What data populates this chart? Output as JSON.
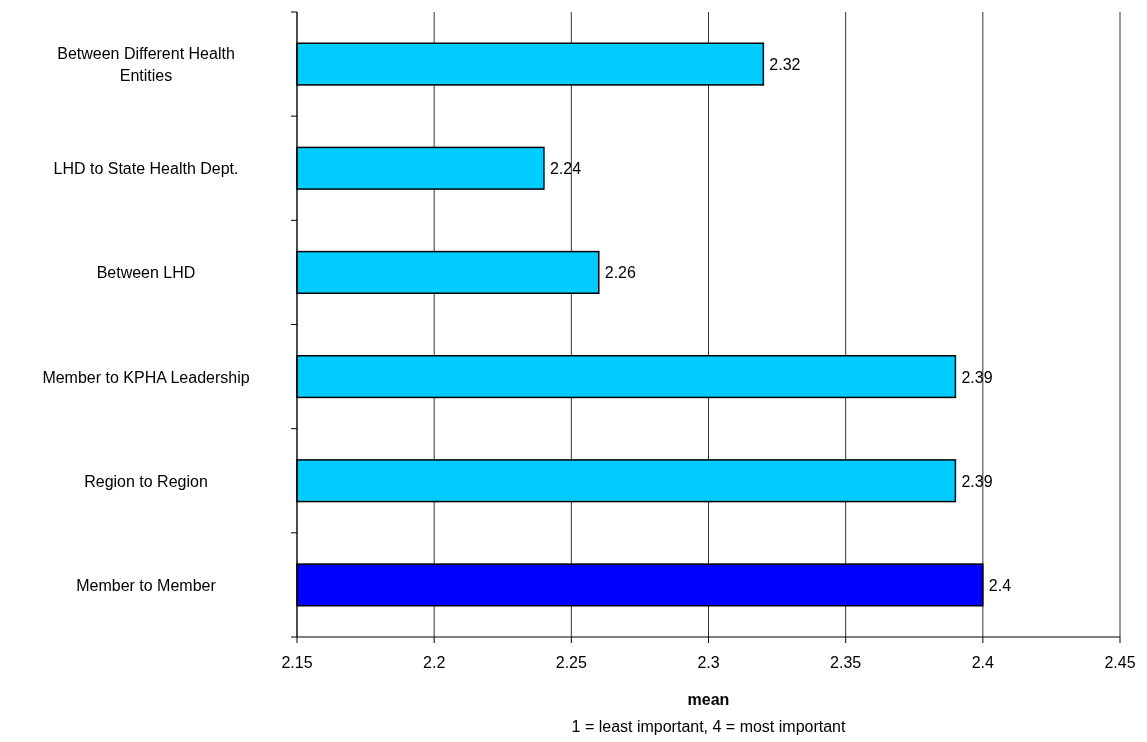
{
  "chart_data": {
    "type": "bar",
    "orientation": "horizontal",
    "xlabel": "mean",
    "annotations": [
      "1 = least important, 4 = most important"
    ],
    "categories": [
      "Between Different Health Entities",
      "LHD to State Health Dept.",
      "Between LHD",
      "Member to KPHA Leadership",
      "Region to Region",
      "Member to Member"
    ],
    "values": [
      2.32,
      2.24,
      2.26,
      2.39,
      2.39,
      2.4
    ],
    "colors": [
      "#00ccff",
      "#00ccff",
      "#00ccff",
      "#00ccff",
      "#00ccff",
      "#0000ff"
    ],
    "xlim": [
      2.15,
      2.45
    ],
    "xticks": [
      2.15,
      2.2,
      2.25,
      2.3,
      2.35,
      2.4,
      2.45
    ],
    "grid": "x",
    "data_labels": true
  }
}
